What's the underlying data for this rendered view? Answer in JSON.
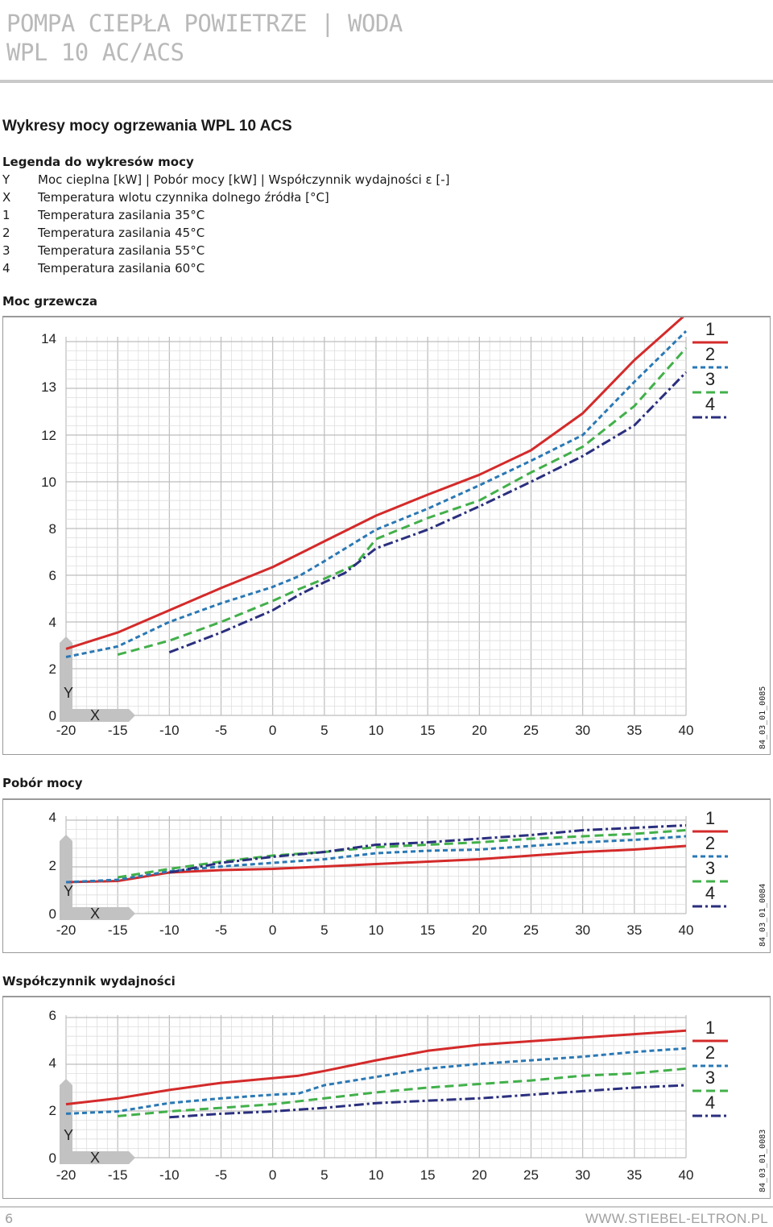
{
  "header": {
    "line1": "POMPA CIEPŁA POWIETRZE | WODA",
    "line2": "WPL 10 AC/ACS"
  },
  "page_title": "Wykresy mocy ogrzewania WPL 10 ACS",
  "legend": {
    "title": "Legenda do wykresów mocy",
    "rows": [
      {
        "key": "Y",
        "text": "Moc cieplna [kW] | Pobór mocy [kW] | Współczynnik wydajności ε [-]"
      },
      {
        "key": "X",
        "text": "Temperatura wlotu czynnika dolnego źródła [°C]"
      },
      {
        "key": "1",
        "text": "Temperatura zasilania 35°C"
      },
      {
        "key": "2",
        "text": "Temperatura zasilania 45°C"
      },
      {
        "key": "3",
        "text": "Temperatura zasilania 55°C"
      },
      {
        "key": "4",
        "text": "Temperatura zasilania 60°C"
      }
    ]
  },
  "series_colors": {
    "1": "#d42a2a",
    "2": "#2a78b4",
    "3": "#42b04a",
    "4": "#2a2f7e"
  },
  "axis_letters": {
    "y": "Y",
    "x": "X"
  },
  "chart_data": [
    {
      "type": "line",
      "title": "Moc grzewcza",
      "code": "84_03_01_0085",
      "xlabel": "X",
      "ylabel": "Y",
      "x_ticks": [
        "-20",
        "-15",
        "-10",
        "-5",
        "0",
        "5",
        "10",
        "15",
        "20",
        "25",
        "30",
        "35",
        "40"
      ],
      "y_ticks": [
        "0",
        "2",
        "4",
        "6",
        "8",
        "10",
        "12",
        "13",
        "14"
      ],
      "y_tick_values": [
        0,
        2,
        4,
        6,
        8,
        10,
        12,
        13,
        14
      ],
      "xlim": [
        -20,
        40
      ],
      "grid": true,
      "legend": "top-right",
      "series": [
        {
          "name": "1",
          "x": [
            -20,
            -15,
            -10,
            -5,
            0,
            2.5,
            5,
            10,
            15,
            20,
            25,
            30,
            35,
            40
          ],
          "y": [
            2.85,
            3.55,
            4.5,
            5.45,
            6.35,
            6.9,
            7.45,
            8.55,
            9.45,
            10.3,
            11.35,
            12.45,
            13.55,
            14.5
          ]
        },
        {
          "name": "2",
          "x": [
            -20,
            -15,
            -10,
            -5,
            0,
            2.5,
            5,
            10,
            15,
            20,
            25,
            30,
            35,
            40
          ],
          "y": [
            2.5,
            2.95,
            4.0,
            4.8,
            5.5,
            5.95,
            6.6,
            7.95,
            8.85,
            9.85,
            10.9,
            12.0,
            13.1,
            14.15
          ]
        },
        {
          "name": "3",
          "x": [
            -15,
            -10,
            -5,
            0,
            2.5,
            5,
            8,
            10,
            15,
            20,
            25,
            30,
            35,
            40
          ],
          "y": [
            2.6,
            3.2,
            4.0,
            4.9,
            5.4,
            5.85,
            6.45,
            7.55,
            8.45,
            9.2,
            10.4,
            11.5,
            12.6,
            13.8
          ]
        },
        {
          "name": "4",
          "x": [
            -10,
            -5,
            0,
            2.5,
            5,
            7,
            10,
            15,
            20,
            25,
            30,
            35,
            40
          ],
          "y": [
            2.7,
            3.55,
            4.5,
            5.15,
            5.7,
            6.1,
            7.15,
            7.95,
            8.95,
            10.0,
            11.1,
            12.2,
            13.3
          ]
        }
      ]
    },
    {
      "type": "line",
      "title": "Pobór mocy",
      "code": "84_03_01_0084",
      "xlabel": "X",
      "ylabel": "Y",
      "x_ticks": [
        "-20",
        "-15",
        "-10",
        "-5",
        "0",
        "5",
        "10",
        "15",
        "20",
        "25",
        "30",
        "35",
        "40"
      ],
      "y_ticks": [
        "0",
        "2",
        "4"
      ],
      "y_tick_values": [
        0,
        2,
        4
      ],
      "xlim": [
        -20,
        40
      ],
      "grid": true,
      "legend": "top-right",
      "series": [
        {
          "name": "1",
          "x": [
            -20,
            -15,
            -10,
            -5,
            0,
            5,
            10,
            15,
            20,
            25,
            30,
            35,
            40
          ],
          "y": [
            1.3,
            1.35,
            1.7,
            1.8,
            1.85,
            1.95,
            2.05,
            2.15,
            2.25,
            2.4,
            2.55,
            2.65,
            2.8
          ]
        },
        {
          "name": "2",
          "x": [
            -20,
            -15,
            -10,
            -5,
            0,
            5,
            10,
            15,
            20,
            25,
            30,
            35,
            40
          ],
          "y": [
            1.3,
            1.4,
            1.75,
            1.95,
            2.1,
            2.25,
            2.5,
            2.6,
            2.65,
            2.8,
            2.95,
            3.05,
            3.2
          ]
        },
        {
          "name": "3",
          "x": [
            -15,
            -10,
            -5,
            0,
            5,
            10,
            15,
            20,
            25,
            30,
            35,
            40
          ],
          "y": [
            1.5,
            1.85,
            2.15,
            2.4,
            2.55,
            2.75,
            2.85,
            2.95,
            3.1,
            3.2,
            3.3,
            3.45
          ]
        },
        {
          "name": "4",
          "x": [
            -10,
            -5,
            0,
            5,
            10,
            15,
            20,
            25,
            30,
            35,
            40
          ],
          "y": [
            1.7,
            2.1,
            2.35,
            2.55,
            2.85,
            2.95,
            3.1,
            3.25,
            3.45,
            3.55,
            3.65
          ]
        }
      ]
    },
    {
      "type": "line",
      "title": "Współczynnik wydajności",
      "code": "84_03_01_0083",
      "xlabel": "X",
      "ylabel": "Y",
      "x_ticks": [
        "-20",
        "-15",
        "-10",
        "-5",
        "0",
        "5",
        "10",
        "15",
        "20",
        "25",
        "30",
        "35",
        "40"
      ],
      "y_ticks": [
        "0",
        "2",
        "4",
        "6"
      ],
      "y_tick_values": [
        0,
        2,
        4,
        6
      ],
      "xlim": [
        -20,
        40
      ],
      "grid": true,
      "legend": "top-right",
      "series": [
        {
          "name": "1",
          "x": [
            -20,
            -15,
            -10,
            -5,
            0,
            2.5,
            5,
            10,
            15,
            20,
            25,
            30,
            35,
            40
          ],
          "y": [
            2.25,
            2.5,
            2.85,
            3.15,
            3.35,
            3.45,
            3.65,
            4.1,
            4.5,
            4.75,
            4.9,
            5.05,
            5.2,
            5.35
          ]
        },
        {
          "name": "2",
          "x": [
            -20,
            -15,
            -10,
            -5,
            0,
            2.5,
            5,
            10,
            15,
            20,
            25,
            30,
            35,
            40
          ],
          "y": [
            1.85,
            1.95,
            2.3,
            2.5,
            2.65,
            2.7,
            3.05,
            3.4,
            3.75,
            3.95,
            4.1,
            4.25,
            4.45,
            4.6
          ]
        },
        {
          "name": "3",
          "x": [
            -15,
            -10,
            -5,
            0,
            5,
            10,
            15,
            20,
            25,
            30,
            35,
            40
          ],
          "y": [
            1.75,
            1.95,
            2.1,
            2.25,
            2.5,
            2.75,
            2.95,
            3.1,
            3.25,
            3.45,
            3.55,
            3.75
          ]
        },
        {
          "name": "4",
          "x": [
            -10,
            -5,
            0,
            5,
            10,
            15,
            20,
            25,
            30,
            35,
            40
          ],
          "y": [
            1.7,
            1.85,
            1.95,
            2.1,
            2.3,
            2.4,
            2.5,
            2.65,
            2.8,
            2.95,
            3.05
          ]
        }
      ]
    }
  ],
  "footer": {
    "page": "6",
    "url": "WWW.STIEBEL-ELTRON.PL"
  }
}
